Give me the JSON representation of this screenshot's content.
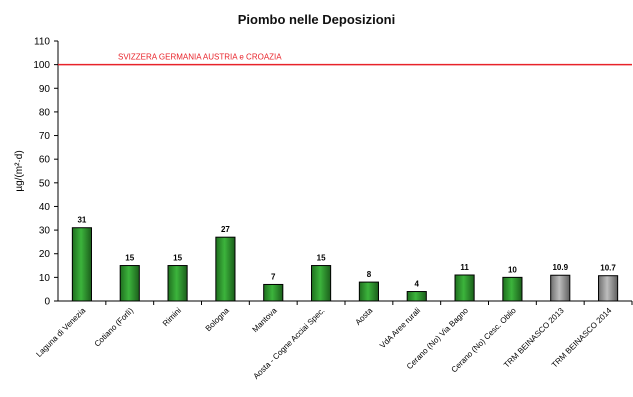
{
  "chart_data": {
    "type": "bar",
    "title": "Piombo nelle Deposizioni",
    "ylabel": "µg/(m²·d)",
    "xlabel": "",
    "ylim": [
      0,
      110
    ],
    "yticks": [
      0,
      10,
      20,
      30,
      40,
      50,
      60,
      70,
      80,
      90,
      100,
      110
    ],
    "grid": false,
    "categories": [
      "Laguna di Venezia",
      "Cotiano (Forlì)",
      "Rimini",
      "Bologna",
      "Mantova",
      "Aosta - Cogne Acciai Spec.",
      "Aosta",
      "VdA Aree rurali",
      "Cerano (No) Via Bagno",
      "Cerano (No) Cesc. Oblio",
      "TRM BEINASCO 2013",
      "TRM BEINASCO 2014"
    ],
    "values": [
      31,
      15,
      15,
      27,
      7,
      15,
      8,
      4,
      11,
      10,
      10.9,
      10.7
    ],
    "value_labels": [
      "31",
      "15",
      "15",
      "27",
      "7",
      "15",
      "8",
      "4",
      "11",
      "10",
      "10.9",
      "10.7"
    ],
    "bar_colors": [
      "#2e9a2e",
      "#2e9a2e",
      "#2e9a2e",
      "#2e9a2e",
      "#2e9a2e",
      "#2e9a2e",
      "#2e9a2e",
      "#2e9a2e",
      "#2e9a2e",
      "#2e9a2e",
      "#9a9a9a",
      "#9a9a9a"
    ],
    "reference_line": {
      "value": 100,
      "label": "SVIZZERA GERMANIA AUSTRIA e CROAZIA",
      "color": "#e8232a"
    }
  }
}
